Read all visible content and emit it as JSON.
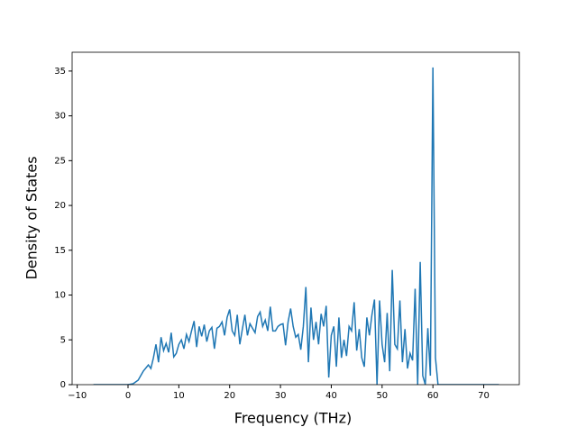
{
  "chart_data": {
    "type": "line",
    "x_label": "Frequency (THz)",
    "y_label": "Density of States",
    "x": [
      -6.8,
      0,
      1,
      2,
      3,
      4,
      4.5,
      5,
      5.5,
      6,
      6.5,
      7,
      7.5,
      8,
      8.5,
      9,
      9.5,
      10,
      10.5,
      11,
      11.5,
      12,
      12.5,
      13,
      13.5,
      14,
      14.5,
      15,
      15.5,
      16,
      16.5,
      17,
      17.5,
      18,
      18.5,
      19,
      19.5,
      20,
      20.5,
      21,
      21.5,
      22,
      22.5,
      23,
      23.5,
      24,
      24.5,
      25,
      25.5,
      26,
      26.5,
      27,
      27.5,
      28,
      28.5,
      29,
      29.5,
      30,
      30.5,
      31,
      31.5,
      32,
      32.5,
      33,
      33.5,
      34,
      34.5,
      35,
      35.5,
      36,
      36.5,
      37,
      37.5,
      38,
      38.5,
      39,
      39.5,
      40,
      40.5,
      41,
      41.5,
      42,
      42.5,
      43,
      43.5,
      44,
      44.5,
      45,
      45.5,
      46,
      46.5,
      47,
      47.5,
      48,
      48.5,
      49,
      49.5,
      50,
      50.5,
      51,
      51.5,
      52,
      52.5,
      53,
      53.5,
      54,
      54.5,
      55,
      55.5,
      56,
      56.5,
      57,
      57.5,
      58,
      58.5,
      59,
      59.5,
      60,
      60.5,
      61,
      62,
      73
    ],
    "series": [
      {
        "color": "#1f77b4",
        "values": [
          0,
          0,
          0.1,
          0.5,
          1.5,
          2.2,
          1.8,
          3,
          4.5,
          2.5,
          5.3,
          3.8,
          4.6,
          3.6,
          5.8,
          3.1,
          3.5,
          4.5,
          5,
          4,
          5.6,
          4.8,
          6,
          7.1,
          4.2,
          6.5,
          5.4,
          6.7,
          4.8,
          6,
          6.4,
          4,
          6.3,
          6.5,
          7,
          5.5,
          7.5,
          8.4,
          6,
          5.5,
          7.8,
          4.5,
          6.2,
          7.8,
          5.5,
          6.8,
          6.3,
          5.8,
          7.6,
          8.1,
          6.5,
          7.2,
          6,
          8.7,
          6,
          6,
          6.5,
          6.7,
          6.8,
          4.4,
          7,
          8.5,
          6.5,
          5.3,
          5.6,
          3.9,
          6.5,
          10.9,
          2.5,
          8.6,
          5,
          7,
          4.5,
          7.9,
          6.5,
          8.8,
          0.8,
          5.5,
          6.5,
          2,
          7.5,
          3,
          5,
          3.2,
          6.5,
          6,
          9.2,
          3.8,
          6.2,
          3,
          2,
          7.5,
          5.5,
          7.8,
          9.5,
          0,
          9.4,
          4.5,
          2.5,
          8,
          1.5,
          12.8,
          4.5,
          4,
          9.4,
          2.5,
          6.2,
          1.8,
          3.5,
          2.7,
          10.7,
          0,
          13.7,
          1,
          0,
          6.3,
          1,
          35.4,
          3,
          0,
          0,
          0
        ]
      }
    ],
    "xlim": [
      -11,
      77
    ],
    "ylim": [
      0,
      37.1
    ],
    "xticks": [
      {
        "value": -10,
        "label": "−10"
      },
      0,
      10,
      20,
      30,
      40,
      50,
      60,
      70
    ],
    "yticks": [
      0,
      5,
      10,
      15,
      20,
      25,
      30,
      35
    ]
  }
}
